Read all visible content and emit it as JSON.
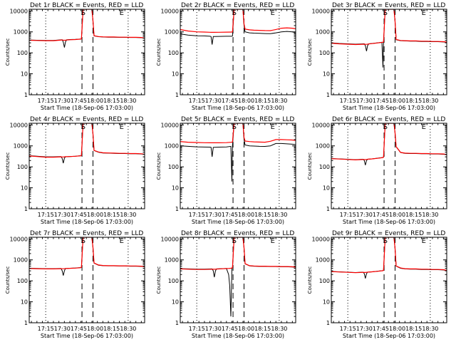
{
  "chart_data": {
    "type": "line",
    "x_tick_labels": [
      "17:15",
      "17:30",
      "17:45",
      "18:00",
      "18:15",
      "18:30"
    ],
    "x_ticks_min": [
      18,
      33,
      48,
      63,
      78,
      93
    ],
    "x_range_min": [
      3,
      108
    ],
    "y_scale": "log",
    "y_range": [
      1,
      12000
    ],
    "y_tick_values": [
      1,
      10,
      100,
      1000,
      10000
    ],
    "y_tick_labels": [
      "1",
      "10",
      "100",
      "1000",
      "10000"
    ],
    "xlabel": "Start Time (18-Sep-06 17:03:00)",
    "ylabel": "Counts/sec",
    "dotted_lines_min": [
      18,
      93
    ],
    "dashed_lines_min": [
      51,
      61
    ],
    "marker_letters": [
      {
        "text": "S",
        "x_min": 52
      },
      {
        "text": "E",
        "x_min": 87
      }
    ],
    "colors": {
      "events": "#000000",
      "lld": "#ff0000"
    },
    "panels": [
      {
        "title": "Det 1r BLACK = Events, RED = LLD",
        "x": [
          3,
          10,
          18,
          25,
          33,
          34,
          35,
          36,
          37,
          40,
          45,
          50,
          50.5,
          52,
          56,
          60,
          61,
          62,
          66,
          70,
          75,
          80,
          85,
          90,
          95,
          100,
          105,
          108
        ],
        "events": [
          410,
          400,
          390,
          390,
          420,
          330,
          180,
          330,
          420,
          430,
          440,
          460,
          470,
          12000,
          12000,
          12000,
          3200,
          650,
          590,
          570,
          560,
          560,
          550,
          550,
          540,
          540,
          530,
          500
        ],
        "lld": [
          400,
          390,
          380,
          380,
          410,
          400,
          400,
          400,
          410,
          420,
          430,
          450,
          470,
          12000,
          12000,
          12000,
          3400,
          660,
          600,
          580,
          570,
          570,
          560,
          560,
          550,
          550,
          540,
          500
        ]
      },
      {
        "title": "Det 2r BLACK = Events, RED = LLD",
        "x": [
          3,
          10,
          18,
          25,
          30,
          31,
          32,
          33,
          34,
          38,
          45,
          50,
          50.5,
          52,
          56,
          60,
          61,
          62,
          66,
          70,
          75,
          80,
          85,
          90,
          95,
          100,
          105,
          108
        ],
        "events": [
          800,
          700,
          650,
          640,
          620,
          600,
          250,
          600,
          600,
          610,
          620,
          620,
          640,
          12000,
          12000,
          12000,
          2000,
          1000,
          900,
          870,
          850,
          830,
          820,
          900,
          1000,
          1050,
          1000,
          900
        ],
        "lld": [
          1300,
          1100,
          1000,
          980,
          960,
          950,
          950,
          950,
          950,
          960,
          970,
          980,
          1000,
          12000,
          12000,
          12000,
          2400,
          1350,
          1250,
          1200,
          1180,
          1160,
          1150,
          1300,
          1500,
          1550,
          1500,
          1400
        ]
      },
      {
        "title": "Det 3r BLACK = Events, RED = LLD",
        "x": [
          3,
          10,
          18,
          25,
          33,
          34,
          35,
          36,
          37,
          40,
          45,
          49,
          50,
          50.5,
          52,
          56,
          60,
          61,
          62,
          66,
          70,
          75,
          80,
          85,
          90,
          95,
          100,
          105,
          108
        ],
        "events": [
          300,
          280,
          270,
          260,
          270,
          220,
          120,
          220,
          270,
          280,
          300,
          320,
          20,
          330,
          12000,
          12000,
          12000,
          3000,
          420,
          380,
          370,
          360,
          360,
          350,
          350,
          340,
          340,
          330,
          320
        ],
        "lld": [
          290,
          270,
          260,
          250,
          260,
          255,
          255,
          260,
          265,
          275,
          295,
          315,
          320,
          330,
          12000,
          12000,
          12000,
          3100,
          430,
          390,
          380,
          370,
          370,
          360,
          360,
          350,
          350,
          340,
          330
        ]
      },
      {
        "title": "Det 4r BLACK = Events, RED = LLD",
        "x": [
          3,
          10,
          18,
          25,
          32,
          33,
          34,
          35,
          36,
          40,
          45,
          50,
          50.5,
          52,
          56,
          60,
          61,
          62,
          66,
          70,
          75,
          80,
          85,
          90,
          95,
          100,
          105,
          108
        ],
        "events": [
          340,
          320,
          300,
          300,
          310,
          250,
          150,
          260,
          300,
          310,
          320,
          340,
          350,
          12000,
          12000,
          12000,
          3600,
          600,
          500,
          460,
          450,
          440,
          430,
          430,
          420,
          420,
          410,
          390
        ],
        "lld": [
          330,
          310,
          290,
          290,
          300,
          295,
          295,
          300,
          305,
          310,
          320,
          335,
          350,
          12000,
          12000,
          12000,
          3700,
          610,
          510,
          470,
          460,
          450,
          440,
          440,
          430,
          430,
          420,
          400
        ]
      },
      {
        "title": "Det 5r BLACK = Events, RED = LLD",
        "x": [
          3,
          10,
          18,
          25,
          30,
          31,
          32,
          33,
          34,
          38,
          45,
          49,
          50,
          50.5,
          52,
          56,
          60,
          61,
          62,
          66,
          70,
          75,
          80,
          85,
          90,
          95,
          100,
          105,
          108
        ],
        "events": [
          1000,
          950,
          900,
          880,
          870,
          860,
          300,
          850,
          860,
          870,
          890,
          950,
          20,
          1000,
          12000,
          12000,
          12000,
          2000,
          1100,
          1000,
          980,
          950,
          940,
          1000,
          1300,
          1300,
          1250,
          1200,
          1150
        ],
        "lld": [
          1600,
          1500,
          1450,
          1420,
          1400,
          1400,
          1400,
          1400,
          1400,
          1410,
          1430,
          1480,
          1500,
          1550,
          12000,
          12000,
          12000,
          2500,
          1700,
          1600,
          1550,
          1520,
          1500,
          1650,
          2000,
          2000,
          1950,
          1900,
          1800
        ]
      },
      {
        "title": "Det 6r BLACK = Events, RED = LLD",
        "x": [
          3,
          10,
          18,
          25,
          32,
          33,
          34,
          35,
          36,
          40,
          45,
          50,
          50.5,
          52,
          56,
          60,
          61,
          62,
          66,
          70,
          75,
          80,
          85,
          90,
          95,
          100,
          105,
          108
        ],
        "events": [
          250,
          240,
          230,
          220,
          230,
          200,
          120,
          200,
          230,
          240,
          260,
          280,
          290,
          12000,
          12000,
          12000,
          4000,
          900,
          480,
          440,
          430,
          430,
          420,
          420,
          410,
          410,
          400,
          380
        ],
        "lld": [
          245,
          235,
          225,
          215,
          225,
          222,
          222,
          225,
          230,
          240,
          255,
          275,
          290,
          12000,
          12000,
          12000,
          4100,
          920,
          490,
          450,
          440,
          440,
          430,
          430,
          420,
          420,
          410,
          390
        ]
      },
      {
        "title": "Det 7r BLACK = Events, RED = LLD",
        "x": [
          3,
          10,
          18,
          25,
          32,
          33,
          34,
          35,
          36,
          40,
          45,
          50,
          50.5,
          52,
          56,
          60,
          61,
          62,
          66,
          70,
          75,
          80,
          85,
          90,
          95,
          100,
          105,
          108
        ],
        "events": [
          400,
          390,
          380,
          380,
          390,
          300,
          180,
          300,
          390,
          400,
          410,
          430,
          440,
          12000,
          12000,
          12000,
          3800,
          700,
          560,
          530,
          520,
          520,
          510,
          510,
          500,
          500,
          490,
          470
        ],
        "lld": [
          390,
          380,
          370,
          370,
          380,
          378,
          378,
          380,
          385,
          395,
          405,
          425,
          440,
          12000,
          12000,
          12000,
          3900,
          710,
          570,
          540,
          530,
          530,
          520,
          520,
          510,
          510,
          500,
          480
        ]
      },
      {
        "title": "Det 8r BLACK = Events, RED = LLD",
        "x": [
          3,
          10,
          18,
          25,
          32,
          33,
          34,
          35,
          36,
          40,
          45,
          47,
          48,
          49,
          50,
          50.5,
          52,
          56,
          60,
          61,
          62,
          66,
          70,
          75,
          80,
          85,
          90,
          95,
          100,
          105,
          108
        ],
        "events": [
          380,
          370,
          360,
          360,
          370,
          300,
          150,
          300,
          370,
          380,
          390,
          200,
          60,
          2,
          400,
          420,
          12000,
          12000,
          12000,
          3700,
          650,
          520,
          500,
          490,
          490,
          480,
          480,
          470,
          470,
          460,
          440
        ],
        "lld": [
          370,
          360,
          350,
          350,
          360,
          358,
          358,
          360,
          365,
          375,
          385,
          390,
          395,
          400,
          410,
          420,
          12000,
          12000,
          12000,
          3800,
          660,
          530,
          510,
          500,
          500,
          490,
          490,
          480,
          480,
          470,
          450
        ]
      },
      {
        "title": "Det 9r BLACK = Events, RED = LLD",
        "x": [
          3,
          10,
          18,
          25,
          32,
          33,
          34,
          35,
          36,
          40,
          45,
          50,
          50.5,
          52,
          56,
          60,
          61,
          62,
          66,
          70,
          75,
          80,
          85,
          90,
          95,
          100,
          105,
          108
        ],
        "events": [
          280,
          270,
          260,
          250,
          260,
          220,
          130,
          220,
          260,
          270,
          290,
          310,
          320,
          12000,
          12000,
          12000,
          3300,
          500,
          400,
          370,
          360,
          360,
          350,
          350,
          340,
          340,
          330,
          310
        ],
        "lld": [
          275,
          265,
          255,
          245,
          255,
          252,
          252,
          255,
          260,
          270,
          285,
          305,
          320,
          12000,
          12000,
          12000,
          3400,
          510,
          410,
          380,
          370,
          370,
          360,
          360,
          350,
          350,
          340,
          320
        ]
      }
    ]
  }
}
